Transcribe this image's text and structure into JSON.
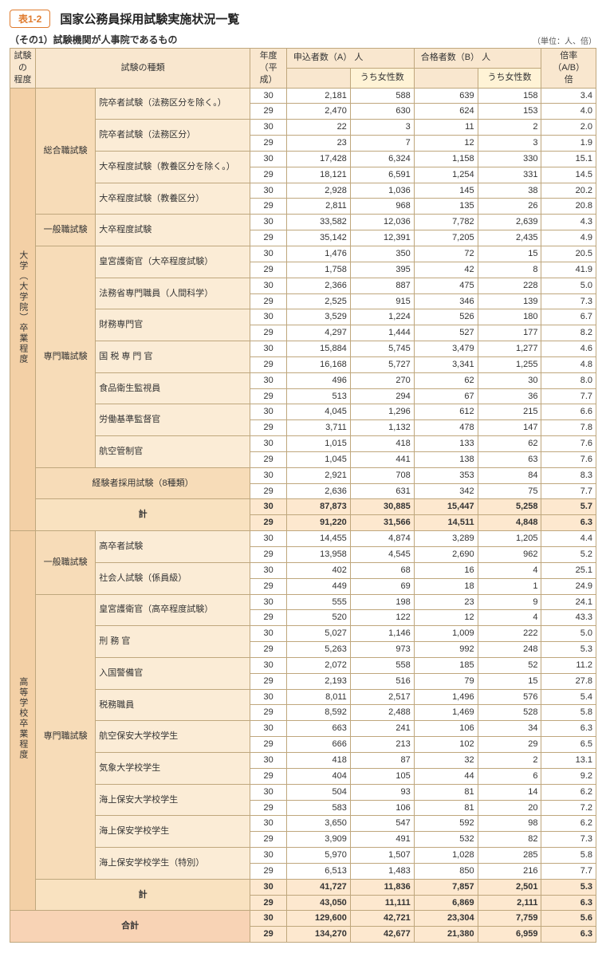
{
  "header": {
    "tag": "表1-2",
    "title": "国家公務員採用試験実施状況一覧",
    "subtitle": "（その1）試験機関が人事院であるもの",
    "unit": "（単位：人、倍）"
  },
  "cols": {
    "level": "試験の\n程度",
    "kind": "試験の種類",
    "year": "年度\n（平成）",
    "appA": "申込者数（A）    人",
    "appA_sub": "うち女性数",
    "passB": "合格者数（B）    人",
    "passB_sub": "うち女性数",
    "ratio": "倍率（A/B）\n倍"
  },
  "colors": {
    "border": "#bfa77d",
    "accent": "#e07b2e",
    "bg_level": "#f3d0a6",
    "bg_cat": "#f7dcb8",
    "bg_exam": "#fbecd6",
    "bg_subtotal": "#f9e2c0",
    "bg_subtotal_num": "#fde8cf",
    "bg_total": "#f8d3b5",
    "header_bg": "#f9e7cf"
  },
  "levels": [
    {
      "label": "大学（大学院）卒業程度",
      "groups": [
        {
          "category": "総合職試験",
          "exams": [
            {
              "name": "院卒者試験（法務区分を除く。）",
              "rows": [
                {
                  "y": "30",
                  "a": "2,181",
                  "aw": "588",
                  "b": "639",
                  "bw": "158",
                  "r": "3.4"
                },
                {
                  "y": "29",
                  "a": "2,470",
                  "aw": "630",
                  "b": "624",
                  "bw": "153",
                  "r": "4.0"
                }
              ]
            },
            {
              "name": "院卒者試験（法務区分）",
              "rows": [
                {
                  "y": "30",
                  "a": "22",
                  "aw": "3",
                  "b": "11",
                  "bw": "2",
                  "r": "2.0"
                },
                {
                  "y": "29",
                  "a": "23",
                  "aw": "7",
                  "b": "12",
                  "bw": "3",
                  "r": "1.9"
                }
              ]
            },
            {
              "name": "大卒程度試験（教養区分を除く。）",
              "rows": [
                {
                  "y": "30",
                  "a": "17,428",
                  "aw": "6,324",
                  "b": "1,158",
                  "bw": "330",
                  "r": "15.1"
                },
                {
                  "y": "29",
                  "a": "18,121",
                  "aw": "6,591",
                  "b": "1,254",
                  "bw": "331",
                  "r": "14.5"
                }
              ]
            },
            {
              "name": "大卒程度試験（教養区分）",
              "rows": [
                {
                  "y": "30",
                  "a": "2,928",
                  "aw": "1,036",
                  "b": "145",
                  "bw": "38",
                  "r": "20.2"
                },
                {
                  "y": "29",
                  "a": "2,811",
                  "aw": "968",
                  "b": "135",
                  "bw": "26",
                  "r": "20.8"
                }
              ]
            }
          ]
        },
        {
          "category": "一般職試験",
          "exams": [
            {
              "name": "大卒程度試験",
              "rows": [
                {
                  "y": "30",
                  "a": "33,582",
                  "aw": "12,036",
                  "b": "7,782",
                  "bw": "2,639",
                  "r": "4.3"
                },
                {
                  "y": "29",
                  "a": "35,142",
                  "aw": "12,391",
                  "b": "7,205",
                  "bw": "2,435",
                  "r": "4.9"
                }
              ]
            }
          ]
        },
        {
          "category": "専門職試験",
          "exams": [
            {
              "name": "皇宮護衛官（大卒程度試験）",
              "rows": [
                {
                  "y": "30",
                  "a": "1,476",
                  "aw": "350",
                  "b": "72",
                  "bw": "15",
                  "r": "20.5"
                },
                {
                  "y": "29",
                  "a": "1,758",
                  "aw": "395",
                  "b": "42",
                  "bw": "8",
                  "r": "41.9"
                }
              ]
            },
            {
              "name": "法務省専門職員（人間科学）",
              "rows": [
                {
                  "y": "30",
                  "a": "2,366",
                  "aw": "887",
                  "b": "475",
                  "bw": "228",
                  "r": "5.0"
                },
                {
                  "y": "29",
                  "a": "2,525",
                  "aw": "915",
                  "b": "346",
                  "bw": "139",
                  "r": "7.3"
                }
              ]
            },
            {
              "name": "財務専門官",
              "rows": [
                {
                  "y": "30",
                  "a": "3,529",
                  "aw": "1,224",
                  "b": "526",
                  "bw": "180",
                  "r": "6.7"
                },
                {
                  "y": "29",
                  "a": "4,297",
                  "aw": "1,444",
                  "b": "527",
                  "bw": "177",
                  "r": "8.2"
                }
              ]
            },
            {
              "name": "国 税 専 門 官",
              "rows": [
                {
                  "y": "30",
                  "a": "15,884",
                  "aw": "5,745",
                  "b": "3,479",
                  "bw": "1,277",
                  "r": "4.6"
                },
                {
                  "y": "29",
                  "a": "16,168",
                  "aw": "5,727",
                  "b": "3,341",
                  "bw": "1,255",
                  "r": "4.8"
                }
              ]
            },
            {
              "name": "食品衛生監視員",
              "rows": [
                {
                  "y": "30",
                  "a": "496",
                  "aw": "270",
                  "b": "62",
                  "bw": "30",
                  "r": "8.0"
                },
                {
                  "y": "29",
                  "a": "513",
                  "aw": "294",
                  "b": "67",
                  "bw": "36",
                  "r": "7.7"
                }
              ]
            },
            {
              "name": "労働基準監督官",
              "rows": [
                {
                  "y": "30",
                  "a": "4,045",
                  "aw": "1,296",
                  "b": "612",
                  "bw": "215",
                  "r": "6.6"
                },
                {
                  "y": "29",
                  "a": "3,711",
                  "aw": "1,132",
                  "b": "478",
                  "bw": "147",
                  "r": "7.8"
                }
              ]
            },
            {
              "name": "航空管制官",
              "rows": [
                {
                  "y": "30",
                  "a": "1,015",
                  "aw": "418",
                  "b": "133",
                  "bw": "62",
                  "r": "7.6"
                },
                {
                  "y": "29",
                  "a": "1,045",
                  "aw": "441",
                  "b": "138",
                  "bw": "63",
                  "r": "7.6"
                }
              ]
            }
          ]
        },
        {
          "category_span2": true,
          "category": "経験者採用試験（8種類）",
          "exams": [
            {
              "rows": [
                {
                  "y": "30",
                  "a": "2,921",
                  "aw": "708",
                  "b": "353",
                  "bw": "84",
                  "r": "8.3"
                },
                {
                  "y": "29",
                  "a": "2,636",
                  "aw": "631",
                  "b": "342",
                  "bw": "75",
                  "r": "7.7"
                }
              ]
            }
          ]
        }
      ],
      "subtotal": {
        "label": "計",
        "rows": [
          {
            "y": "30",
            "a": "87,873",
            "aw": "30,885",
            "b": "15,447",
            "bw": "5,258",
            "r": "5.7"
          },
          {
            "y": "29",
            "a": "91,220",
            "aw": "31,566",
            "b": "14,511",
            "bw": "4,848",
            "r": "6.3"
          }
        ]
      }
    },
    {
      "label": "高等学校卒業程度",
      "groups": [
        {
          "category": "一般職試験",
          "exams": [
            {
              "name": "高卒者試験",
              "rows": [
                {
                  "y": "30",
                  "a": "14,455",
                  "aw": "4,874",
                  "b": "3,289",
                  "bw": "1,205",
                  "r": "4.4"
                },
                {
                  "y": "29",
                  "a": "13,958",
                  "aw": "4,545",
                  "b": "2,690",
                  "bw": "962",
                  "r": "5.2"
                }
              ]
            },
            {
              "name": "社会人試験（係員級）",
              "rows": [
                {
                  "y": "30",
                  "a": "402",
                  "aw": "68",
                  "b": "16",
                  "bw": "4",
                  "r": "25.1"
                },
                {
                  "y": "29",
                  "a": "449",
                  "aw": "69",
                  "b": "18",
                  "bw": "1",
                  "r": "24.9"
                }
              ]
            }
          ]
        },
        {
          "category": "専門職試験",
          "exams": [
            {
              "name": "皇宮護衛官（高卒程度試験）",
              "rows": [
                {
                  "y": "30",
                  "a": "555",
                  "aw": "198",
                  "b": "23",
                  "bw": "9",
                  "r": "24.1"
                },
                {
                  "y": "29",
                  "a": "520",
                  "aw": "122",
                  "b": "12",
                  "bw": "4",
                  "r": "43.3"
                }
              ]
            },
            {
              "name": "刑 務 官",
              "rows": [
                {
                  "y": "30",
                  "a": "5,027",
                  "aw": "1,146",
                  "b": "1,009",
                  "bw": "222",
                  "r": "5.0"
                },
                {
                  "y": "29",
                  "a": "5,263",
                  "aw": "973",
                  "b": "992",
                  "bw": "248",
                  "r": "5.3"
                }
              ]
            },
            {
              "name": "入国警備官",
              "rows": [
                {
                  "y": "30",
                  "a": "2,072",
                  "aw": "558",
                  "b": "185",
                  "bw": "52",
                  "r": "11.2"
                },
                {
                  "y": "29",
                  "a": "2,193",
                  "aw": "516",
                  "b": "79",
                  "bw": "15",
                  "r": "27.8"
                }
              ]
            },
            {
              "name": "税務職員",
              "rows": [
                {
                  "y": "30",
                  "a": "8,011",
                  "aw": "2,517",
                  "b": "1,496",
                  "bw": "576",
                  "r": "5.4"
                },
                {
                  "y": "29",
                  "a": "8,592",
                  "aw": "2,488",
                  "b": "1,469",
                  "bw": "528",
                  "r": "5.8"
                }
              ]
            },
            {
              "name": "航空保安大学校学生",
              "rows": [
                {
                  "y": "30",
                  "a": "663",
                  "aw": "241",
                  "b": "106",
                  "bw": "34",
                  "r": "6.3"
                },
                {
                  "y": "29",
                  "a": "666",
                  "aw": "213",
                  "b": "102",
                  "bw": "29",
                  "r": "6.5"
                }
              ]
            },
            {
              "name": "気象大学校学生",
              "rows": [
                {
                  "y": "30",
                  "a": "418",
                  "aw": "87",
                  "b": "32",
                  "bw": "2",
                  "r": "13.1"
                },
                {
                  "y": "29",
                  "a": "404",
                  "aw": "105",
                  "b": "44",
                  "bw": "6",
                  "r": "9.2"
                }
              ]
            },
            {
              "name": "海上保安大学校学生",
              "rows": [
                {
                  "y": "30",
                  "a": "504",
                  "aw": "93",
                  "b": "81",
                  "bw": "14",
                  "r": "6.2"
                },
                {
                  "y": "29",
                  "a": "583",
                  "aw": "106",
                  "b": "81",
                  "bw": "20",
                  "r": "7.2"
                }
              ]
            },
            {
              "name": "海上保安学校学生",
              "rows": [
                {
                  "y": "30",
                  "a": "3,650",
                  "aw": "547",
                  "b": "592",
                  "bw": "98",
                  "r": "6.2"
                },
                {
                  "y": "29",
                  "a": "3,909",
                  "aw": "491",
                  "b": "532",
                  "bw": "82",
                  "r": "7.3"
                }
              ]
            },
            {
              "name": "海上保安学校学生（特別）",
              "rows": [
                {
                  "y": "30",
                  "a": "5,970",
                  "aw": "1,507",
                  "b": "1,028",
                  "bw": "285",
                  "r": "5.8"
                },
                {
                  "y": "29",
                  "a": "6,513",
                  "aw": "1,483",
                  "b": "850",
                  "bw": "216",
                  "r": "7.7"
                }
              ]
            }
          ]
        }
      ],
      "subtotal": {
        "label": "計",
        "rows": [
          {
            "y": "30",
            "a": "41,727",
            "aw": "11,836",
            "b": "7,857",
            "bw": "2,501",
            "r": "5.3"
          },
          {
            "y": "29",
            "a": "43,050",
            "aw": "11,111",
            "b": "6,869",
            "bw": "2,111",
            "r": "6.3"
          }
        ]
      }
    }
  ],
  "grand_total": {
    "label": "合計",
    "rows": [
      {
        "y": "30",
        "a": "129,600",
        "aw": "42,721",
        "b": "23,304",
        "bw": "7,759",
        "r": "5.6"
      },
      {
        "y": "29",
        "a": "134,270",
        "aw": "42,677",
        "b": "21,380",
        "bw": "6,959",
        "r": "6.3"
      }
    ]
  }
}
